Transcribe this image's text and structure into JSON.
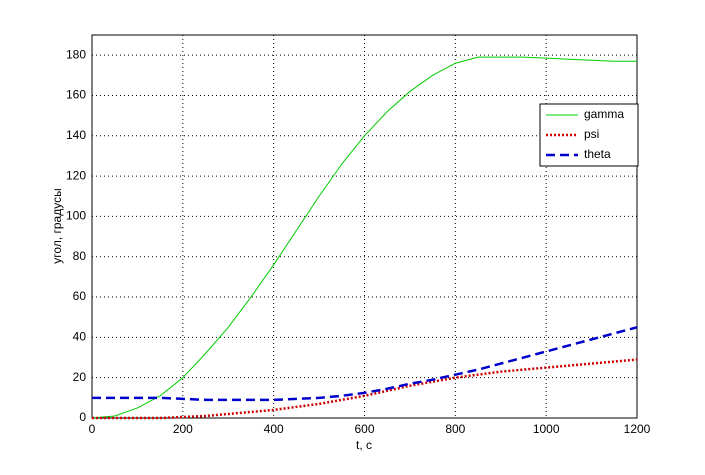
{
  "chart_data": {
    "type": "line",
    "xlabel": "t, c",
    "ylabel": "угол, градусы",
    "x": [
      0,
      50,
      100,
      150,
      200,
      250,
      300,
      350,
      400,
      450,
      500,
      550,
      600,
      650,
      700,
      750,
      800,
      850,
      900,
      950,
      1000,
      1050,
      1100,
      1150,
      1200
    ],
    "series": [
      {
        "name": "gamma",
        "color": "#00cc00",
        "style": "solid",
        "values": [
          0,
          1,
          5,
          11,
          20,
          32,
          45,
          60,
          76,
          93,
          110,
          126,
          140,
          152,
          162,
          170,
          176,
          179,
          179,
          179,
          178.5,
          178,
          177.5,
          177,
          177
        ]
      },
      {
        "name": "psi",
        "color": "#cc0000",
        "style": "dotted",
        "values": [
          0,
          0,
          0,
          0,
          0.5,
          1,
          2,
          3,
          4,
          5.5,
          7,
          9,
          11,
          13.5,
          16,
          18,
          20,
          21.5,
          23,
          24,
          25,
          26,
          27,
          28,
          29
        ]
      },
      {
        "name": "theta",
        "color": "#0000cc",
        "style": "dashed",
        "values": [
          10,
          10,
          10,
          10,
          9.5,
          9,
          9,
          9,
          9,
          9.5,
          10,
          11,
          12.5,
          14.5,
          17,
          19,
          21.5,
          24,
          27,
          30,
          33,
          36,
          39,
          42,
          45
        ]
      }
    ],
    "xlim": [
      0,
      1200
    ],
    "xticks": [
      0,
      200,
      400,
      600,
      800,
      1000,
      1200
    ],
    "ylim": [
      0,
      190
    ],
    "yticks": [
      0,
      20,
      40,
      60,
      80,
      100,
      120,
      140,
      160,
      180
    ],
    "grid": true,
    "legend": "upper right"
  }
}
